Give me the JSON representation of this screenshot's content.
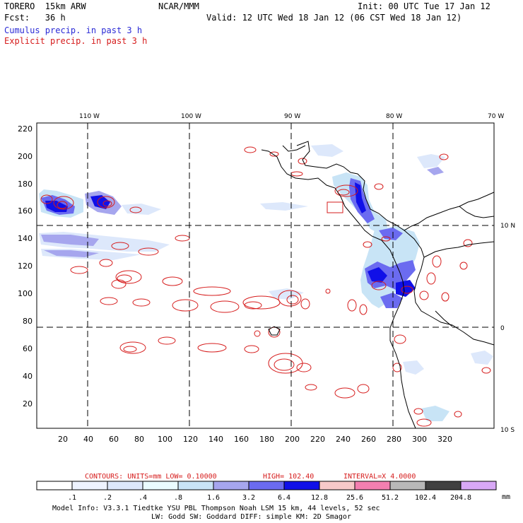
{
  "header": {
    "model": "TORERO  15km ARW",
    "org": "NCAR/MMM",
    "init": "Init: 00 UTC Tue 17 Jan 12",
    "fcst": "Fcst:   36 h",
    "valid": "Valid: 12 UTC Wed 18 Jan 12 (06 CST Wed 18 Jan 12)",
    "cumulus": "Cumulus precip. in past 3 h",
    "explicit": "Explicit precip. in past 3 h"
  },
  "axes": {
    "lon_labels": [
      "110 W",
      "100 W",
      "90 W",
      "80 W",
      "70 W"
    ],
    "lat_labels": [
      "10 N",
      "0",
      "10 S"
    ],
    "y_ticks": [
      "220",
      "200",
      "180",
      "160",
      "140",
      "120",
      "100",
      "80",
      "60",
      "40",
      "20"
    ],
    "x_ticks": [
      "20",
      "40",
      "60",
      "80",
      "100",
      "120",
      "140",
      "160",
      "180",
      "200",
      "220",
      "240",
      "260",
      "280",
      "300",
      "320"
    ]
  },
  "contour_info": {
    "units": "CONTOURS:  UNITS=mm  LOW= 0.10000",
    "high": "HIGH=  102.40",
    "interval": "INTERVAL=X  4.0000"
  },
  "colorbar": {
    "labels": [
      ".1",
      ".2",
      ".4",
      ".8",
      "1.6",
      "3.2",
      "6.4",
      "12.8",
      "25.6",
      "51.2",
      "102.4",
      "204.8"
    ],
    "unit": "mm",
    "colors": [
      "#ffffff",
      "#eef3ff",
      "#dde8fb",
      "#eafcff",
      "#c8e4f6",
      "#a6a6ee",
      "#6b6bf0",
      "#1010e8",
      "#f7c9c9",
      "#f37fb0",
      "#b8b8b8",
      "#404040",
      "#d8a8f6"
    ]
  },
  "model_info": {
    "line1": "Model Info: V3.3.1    Tiedtke YSU PBL  Thompson    Noah LSM  15 km,   44 levels,   52 sec",
    "line2": "LW: Godd SW: Goddard DIFF: simple KM: 2D Smagor"
  }
}
